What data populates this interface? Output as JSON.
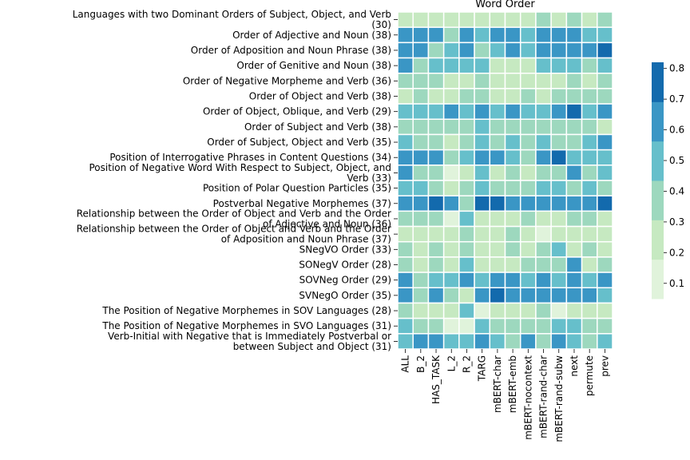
{
  "chart_data": {
    "type": "heatmap",
    "title": "Word Order",
    "columns": [
      "ALL",
      "B_2",
      "HAS_TASK",
      "L_2",
      "R_2",
      "TARG",
      "mBERT-char",
      "mBERT-emb",
      "mBERT-nocontext",
      "mBERT-rand-char",
      "mBERT-rand-subw",
      "next",
      "permute",
      "prev"
    ],
    "rows": [
      "Languages with two Dominant Orders of Subject, Object, and Verb (30)",
      "Order of Adjective and Noun (38)",
      "Order of Adposition and Noun Phrase (38)",
      "Order of Genitive and Noun (38)",
      "Order of Negative Morpheme and Verb (36)",
      "Order of Object and Verb (38)",
      "Order of Object, Oblique, and Verb (29)",
      "Order of Subject and Verb (38)",
      "Order of Subject, Object and Verb (35)",
      "Position of Interrogative Phrases in Content Questions (34)",
      "Position of Negative Word With Respect to Subject, Object, and Verb (33)",
      "Position of Polar Question Particles (35)",
      "Postverbal Negative Morphemes (37)",
      "Relationship between the Order of Object and Verb and the Order of Adjective and Noun (36)",
      "Relationship between the Order of Object and Verb and the Order of Adposition and Noun Phrase (37)",
      "SNegVO Order (33)",
      "SONegV Order (28)",
      "SOVNeg Order (29)",
      "SVNegO Order (35)",
      "The Position of Negative Morphemes in SOV Languages (28)",
      "The Position of Negative Morphemes in SVO Languages (31)",
      "Verb-Initial with Negative that is Immediately Postverbal or between Subject and Object (31)"
    ],
    "values": [
      [
        0.25,
        0.3,
        0.25,
        0.25,
        0.3,
        0.25,
        0.3,
        0.3,
        0.3,
        0.35,
        0.25,
        0.4,
        0.25,
        0.35
      ],
      [
        0.6,
        0.6,
        0.6,
        0.35,
        0.6,
        0.5,
        0.6,
        0.6,
        0.5,
        0.6,
        0.6,
        0.6,
        0.5,
        0.5
      ],
      [
        0.6,
        0.65,
        0.4,
        0.5,
        0.6,
        0.4,
        0.5,
        0.6,
        0.5,
        0.6,
        0.6,
        0.6,
        0.6,
        0.75
      ],
      [
        0.6,
        0.4,
        0.5,
        0.5,
        0.5,
        0.5,
        0.25,
        0.3,
        0.25,
        0.5,
        0.5,
        0.5,
        0.4,
        0.5
      ],
      [
        0.35,
        0.35,
        0.35,
        0.25,
        0.25,
        0.35,
        0.25,
        0.25,
        0.25,
        0.25,
        0.25,
        0.35,
        0.25,
        0.35
      ],
      [
        0.25,
        0.35,
        0.25,
        0.25,
        0.35,
        0.35,
        0.25,
        0.25,
        0.35,
        0.25,
        0.35,
        0.35,
        0.35,
        0.35
      ],
      [
        0.5,
        0.5,
        0.5,
        0.65,
        0.5,
        0.6,
        0.5,
        0.6,
        0.5,
        0.5,
        0.6,
        0.75,
        0.5,
        0.6
      ],
      [
        0.35,
        0.35,
        0.35,
        0.35,
        0.35,
        0.5,
        0.35,
        0.35,
        0.35,
        0.35,
        0.35,
        0.35,
        0.35,
        0.25
      ],
      [
        0.5,
        0.35,
        0.35,
        0.25,
        0.35,
        0.5,
        0.35,
        0.5,
        0.35,
        0.5,
        0.35,
        0.35,
        0.5,
        0.6
      ],
      [
        0.6,
        0.6,
        0.6,
        0.35,
        0.5,
        0.6,
        0.6,
        0.5,
        0.35,
        0.6,
        0.75,
        0.5,
        0.5,
        0.5
      ],
      [
        0.6,
        0.35,
        0.35,
        0.15,
        0.25,
        0.5,
        0.25,
        0.35,
        0.25,
        0.35,
        0.35,
        0.6,
        0.4,
        0.5
      ],
      [
        0.5,
        0.5,
        0.35,
        0.25,
        0.35,
        0.5,
        0.35,
        0.35,
        0.35,
        0.5,
        0.5,
        0.35,
        0.5,
        0.35
      ],
      [
        0.6,
        0.6,
        0.75,
        0.6,
        0.4,
        0.75,
        0.8,
        0.6,
        0.6,
        0.6,
        0.6,
        0.6,
        0.6,
        0.75
      ],
      [
        0.35,
        0.35,
        0.35,
        0.15,
        0.5,
        0.25,
        0.25,
        0.25,
        0.35,
        0.25,
        0.25,
        0.35,
        0.35,
        0.25
      ],
      [
        0.25,
        0.25,
        0.25,
        0.25,
        0.35,
        0.25,
        0.25,
        0.35,
        0.25,
        0.15,
        0.25,
        0.25,
        0.25,
        0.25
      ],
      [
        0.35,
        0.25,
        0.35,
        0.25,
        0.35,
        0.25,
        0.25,
        0.35,
        0.25,
        0.35,
        0.5,
        0.25,
        0.35,
        0.25
      ],
      [
        0.35,
        0.25,
        0.35,
        0.25,
        0.5,
        0.25,
        0.25,
        0.25,
        0.35,
        0.35,
        0.35,
        0.6,
        0.25,
        0.35
      ],
      [
        0.6,
        0.35,
        0.5,
        0.5,
        0.6,
        0.5,
        0.6,
        0.6,
        0.5,
        0.6,
        0.5,
        0.6,
        0.5,
        0.6
      ],
      [
        0.6,
        0.4,
        0.6,
        0.35,
        0.25,
        0.6,
        0.8,
        0.6,
        0.6,
        0.6,
        0.6,
        0.6,
        0.6,
        0.5
      ],
      [
        0.35,
        0.25,
        0.25,
        0.25,
        0.5,
        0.15,
        0.25,
        0.25,
        0.25,
        0.35,
        0.15,
        0.25,
        0.25,
        0.25
      ],
      [
        0.5,
        0.35,
        0.35,
        0.15,
        0.15,
        0.5,
        0.35,
        0.35,
        0.35,
        0.35,
        0.5,
        0.5,
        0.35,
        0.35
      ],
      [
        0.5,
        0.6,
        0.6,
        0.5,
        0.5,
        0.6,
        0.5,
        0.35,
        0.6,
        0.35,
        0.6,
        0.5,
        0.35,
        0.5
      ]
    ],
    "colorbar": {
      "ticks": [
        0.1,
        0.2,
        0.3,
        0.4,
        0.5,
        0.6,
        0.7,
        0.8
      ],
      "range": [
        0.05,
        0.82
      ],
      "colors": [
        "#e0f3db",
        "#c6e9c1",
        "#9dd8be",
        "#66bfcb",
        "#3a96c5",
        "#136aad"
      ]
    }
  }
}
